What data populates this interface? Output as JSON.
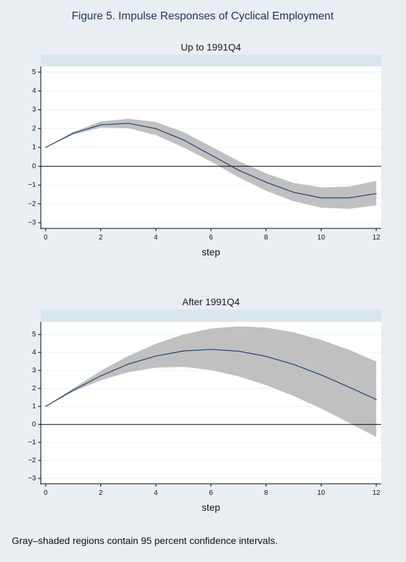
{
  "figure_title": "Figure 5.  Impulse Responses of Cyclical Employment",
  "footnote": "Gray–shaded regions contain 95 percent confidence intervals.",
  "colors": {
    "background": "#e8eef2",
    "plot_area": "#ffffff",
    "panel_strip": "#d9e6ec",
    "band": "#c0c0c0",
    "line": "#1f3f6e",
    "zero_line": "#000000",
    "title": "#1f2f5a"
  },
  "chart_data": [
    {
      "type": "line",
      "title": "Up to 1991Q4",
      "xlabel": "step",
      "ylabel": "",
      "xlim": [
        0,
        12
      ],
      "ylim": [
        -3.3,
        5.3
      ],
      "xticks": [
        0,
        2,
        4,
        6,
        8,
        10,
        12
      ],
      "yticks": [
        -3,
        -2,
        -1,
        0,
        1,
        2,
        3,
        4,
        5
      ],
      "grid": true,
      "x": [
        0,
        1,
        2,
        3,
        4,
        5,
        6,
        7,
        8,
        9,
        10,
        11,
        12
      ],
      "series": [
        {
          "values": [
            1.0,
            1.75,
            2.2,
            2.28,
            2.0,
            1.4,
            0.6,
            -0.2,
            -0.85,
            -1.38,
            -1.68,
            -1.68,
            -1.45
          ],
          "lower": [
            1.0,
            1.68,
            2.05,
            2.02,
            1.65,
            1.0,
            0.25,
            -0.58,
            -1.3,
            -1.86,
            -2.2,
            -2.26,
            -2.08
          ],
          "upper": [
            1.0,
            1.82,
            2.38,
            2.52,
            2.35,
            1.82,
            1.05,
            0.28,
            -0.38,
            -0.88,
            -1.12,
            -1.08,
            -0.78
          ]
        }
      ]
    },
    {
      "type": "line",
      "title": "After 1991Q4",
      "xlabel": "step",
      "ylabel": "",
      "xlim": [
        0,
        12
      ],
      "ylim": [
        -3.3,
        5.7
      ],
      "xticks": [
        0,
        2,
        4,
        6,
        8,
        10,
        12
      ],
      "yticks": [
        -3,
        -2,
        -1,
        0,
        1,
        2,
        3,
        4,
        5
      ],
      "grid": true,
      "x": [
        0,
        1,
        2,
        3,
        4,
        5,
        6,
        7,
        8,
        9,
        10,
        11,
        12
      ],
      "series": [
        {
          "values": [
            1.0,
            1.9,
            2.7,
            3.35,
            3.8,
            4.08,
            4.17,
            4.07,
            3.78,
            3.33,
            2.75,
            2.08,
            1.38
          ],
          "lower": [
            1.0,
            1.82,
            2.45,
            2.9,
            3.15,
            3.2,
            3.02,
            2.67,
            2.18,
            1.58,
            0.88,
            0.1,
            -0.7
          ],
          "upper": [
            1.0,
            2.0,
            2.98,
            3.8,
            4.48,
            5.0,
            5.33,
            5.45,
            5.38,
            5.12,
            4.7,
            4.15,
            3.5
          ]
        }
      ]
    }
  ]
}
